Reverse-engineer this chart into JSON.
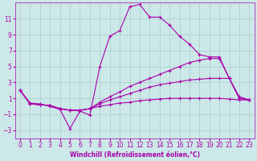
{
  "background_color": "#cce8e8",
  "grid_color": "#aacccc",
  "line_color": "#aa00aa",
  "xlabel": "Windchill (Refroidissement éolien,°C)",
  "xlim": [
    -0.5,
    23.5
  ],
  "ylim": [
    -4,
    13
  ],
  "xticks": [
    0,
    1,
    2,
    3,
    4,
    5,
    6,
    7,
    8,
    9,
    10,
    11,
    12,
    13,
    14,
    15,
    16,
    17,
    18,
    19,
    20,
    21,
    22,
    23
  ],
  "yticks": [
    -3,
    -1,
    1,
    3,
    5,
    7,
    9,
    11
  ],
  "lines": [
    {
      "x": [
        0,
        1,
        2,
        3,
        4,
        5,
        6,
        7,
        8,
        9,
        10,
        11,
        12,
        13,
        14,
        15,
        16,
        17,
        18,
        19,
        20,
        21,
        22,
        23
      ],
      "y": [
        2.0,
        0.4,
        0.3,
        0.0,
        -0.4,
        -2.8,
        -0.6,
        -1.1,
        5.0,
        8.8,
        9.5,
        12.5,
        12.8,
        11.2,
        11.2,
        10.2,
        8.8,
        7.8,
        6.5,
        6.2,
        6.2,
        3.5,
        1.2,
        0.8
      ]
    },
    {
      "x": [
        0,
        1,
        2,
        3,
        4,
        5,
        6,
        7,
        8,
        9,
        10,
        11,
        12,
        13,
        14,
        15,
        16,
        17,
        18,
        19,
        20,
        21,
        22,
        23
      ],
      "y": [
        2.0,
        0.3,
        0.2,
        0.1,
        -0.3,
        -0.5,
        -0.5,
        -0.3,
        0.5,
        1.2,
        1.8,
        2.5,
        3.0,
        3.5,
        4.0,
        4.5,
        5.0,
        5.5,
        5.8,
        6.0,
        6.0,
        3.5,
        1.0,
        0.8
      ]
    },
    {
      "x": [
        0,
        1,
        2,
        3,
        4,
        5,
        6,
        7,
        8,
        9,
        10,
        11,
        12,
        13,
        14,
        15,
        16,
        17,
        18,
        19,
        20,
        21,
        22,
        23
      ],
      "y": [
        2.0,
        0.3,
        0.2,
        0.1,
        -0.3,
        -0.5,
        -0.5,
        -0.3,
        0.3,
        0.8,
        1.2,
        1.6,
        2.0,
        2.4,
        2.7,
        2.9,
        3.1,
        3.3,
        3.4,
        3.5,
        3.5,
        3.5,
        1.0,
        0.8
      ]
    },
    {
      "x": [
        0,
        1,
        2,
        3,
        4,
        5,
        6,
        7,
        8,
        9,
        10,
        11,
        12,
        13,
        14,
        15,
        16,
        17,
        18,
        19,
        20,
        21,
        22,
        23
      ],
      "y": [
        2.0,
        0.3,
        0.2,
        0.1,
        -0.3,
        -0.5,
        -0.5,
        -0.3,
        0.0,
        0.2,
        0.4,
        0.5,
        0.7,
        0.8,
        0.9,
        1.0,
        1.0,
        1.0,
        1.0,
        1.0,
        1.0,
        0.9,
        0.8,
        0.8
      ]
    }
  ],
  "marker": "+",
  "markersize": 3,
  "linewidth": 0.8
}
